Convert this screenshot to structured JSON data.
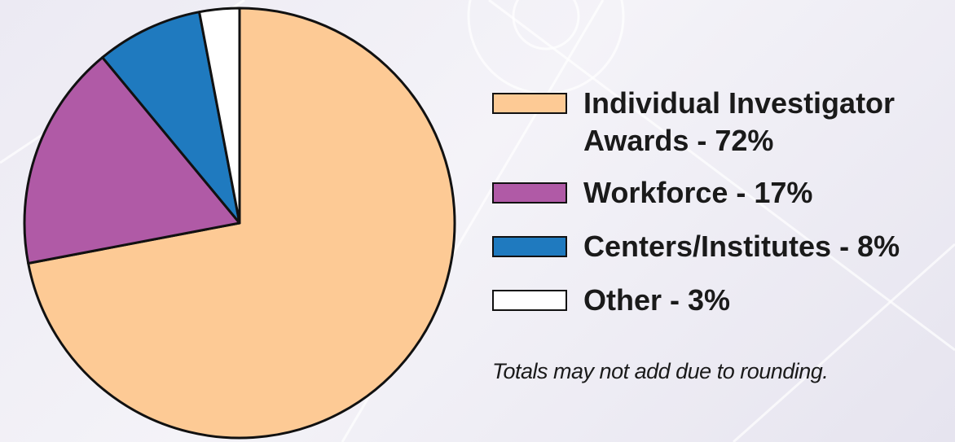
{
  "chart_data": {
    "type": "pie",
    "slices": [
      {
        "label": "Individual Investigator Awards - 72%",
        "value": 72,
        "color": "#fdca95"
      },
      {
        "label": "Workforce - 17%",
        "value": 17,
        "color": "#b05aa6"
      },
      {
        "label": "Centers/Institutes  - 8%",
        "value": 8,
        "color": "#1f7abf"
      },
      {
        "label": "Other - 3%",
        "value": 3,
        "color": "#ffffff"
      }
    ],
    "legend_placement": "right",
    "annotation": "Totals may not add due to rounding."
  }
}
